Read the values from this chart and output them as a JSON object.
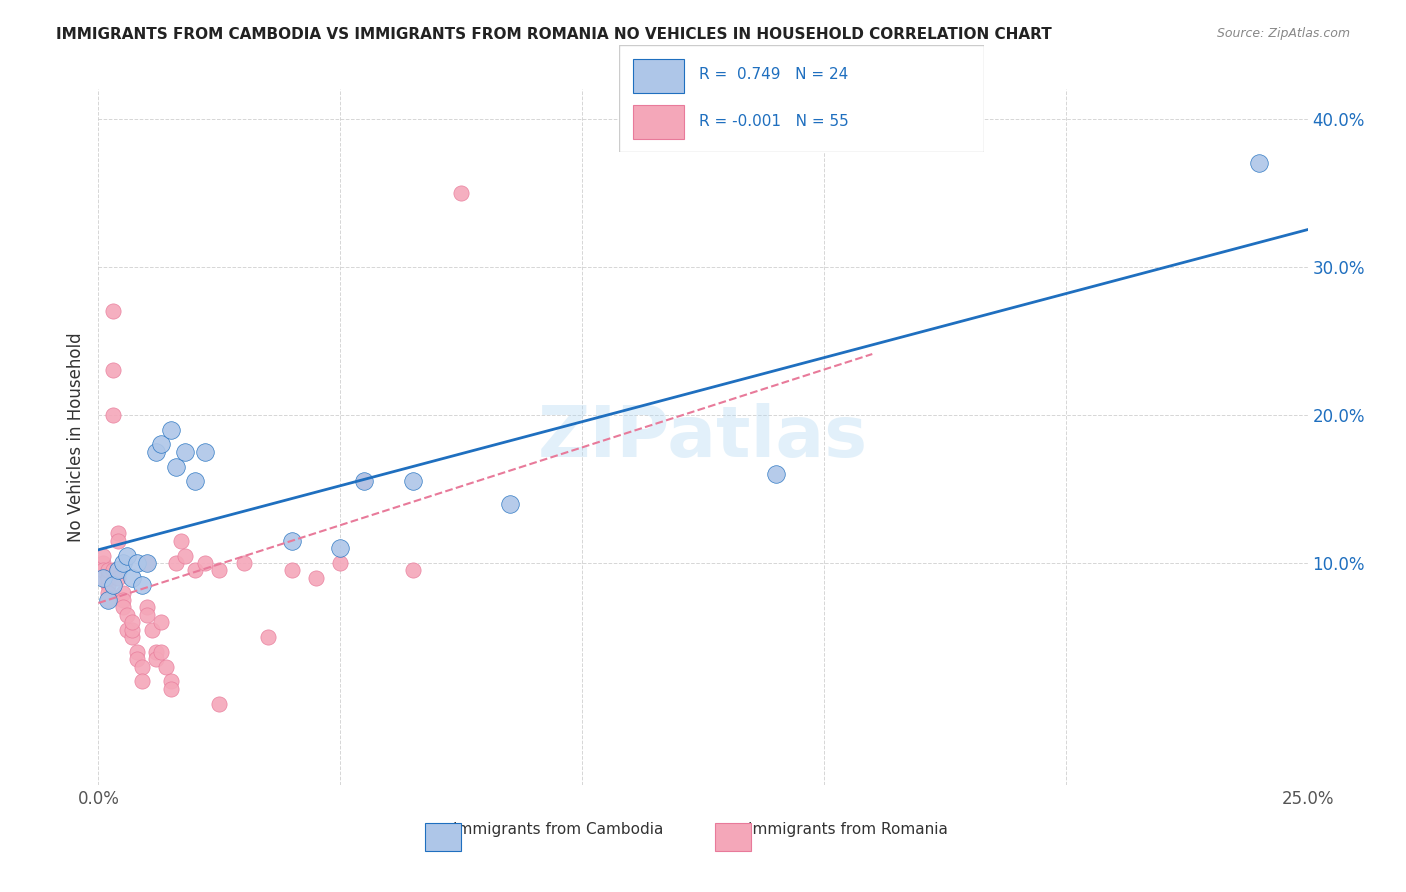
{
  "title": "IMMIGRANTS FROM CAMBODIA VS IMMIGRANTS FROM ROMANIA NO VEHICLES IN HOUSEHOLD CORRELATION CHART",
  "source": "Source: ZipAtlas.com",
  "xlabel_bottom": "",
  "ylabel": "No Vehicles in Household",
  "x_min": 0.0,
  "x_max": 0.25,
  "y_min": -0.05,
  "y_max": 0.42,
  "x_ticks": [
    0.0,
    0.05,
    0.1,
    0.15,
    0.2,
    0.25
  ],
  "x_tick_labels": [
    "0.0%",
    "",
    "",
    "",
    "",
    "25.0%"
  ],
  "y_ticks": [
    0.1,
    0.2,
    0.3,
    0.4
  ],
  "y_tick_labels": [
    "10.0%",
    "20.0%",
    "30.0%",
    "40.0%"
  ],
  "cambodia_color": "#aec6e8",
  "romania_color": "#f4a7b9",
  "cambodia_line_color": "#1f6fbf",
  "romania_line_color": "#e87a9a",
  "legend_cambodia_label": "Immigrants from Cambodia",
  "legend_romania_label": "Immigrants from Romania",
  "R_cambodia": 0.749,
  "N_cambodia": 24,
  "R_romania": -0.001,
  "N_romania": 55,
  "watermark": "ZIPatlas",
  "cambodia_x": [
    0.001,
    0.002,
    0.003,
    0.004,
    0.005,
    0.006,
    0.007,
    0.008,
    0.009,
    0.01,
    0.012,
    0.013,
    0.015,
    0.016,
    0.018,
    0.02,
    0.022,
    0.04,
    0.05,
    0.055,
    0.065,
    0.085,
    0.14,
    0.24
  ],
  "cambodia_y": [
    0.09,
    0.075,
    0.085,
    0.095,
    0.1,
    0.105,
    0.09,
    0.1,
    0.085,
    0.1,
    0.175,
    0.18,
    0.19,
    0.165,
    0.175,
    0.155,
    0.175,
    0.115,
    0.11,
    0.155,
    0.155,
    0.14,
    0.16,
    0.37
  ],
  "romania_x": [
    0.001,
    0.001,
    0.001,
    0.001,
    0.001,
    0.002,
    0.002,
    0.002,
    0.002,
    0.002,
    0.003,
    0.003,
    0.003,
    0.003,
    0.004,
    0.004,
    0.004,
    0.005,
    0.005,
    0.005,
    0.006,
    0.006,
    0.007,
    0.007,
    0.007,
    0.008,
    0.008,
    0.009,
    0.009,
    0.01,
    0.01,
    0.01,
    0.011,
    0.012,
    0.012,
    0.013,
    0.013,
    0.014,
    0.015,
    0.015,
    0.016,
    0.017,
    0.018,
    0.02,
    0.022,
    0.025,
    0.025,
    0.03,
    0.035,
    0.04,
    0.045,
    0.05,
    0.055,
    0.065,
    0.075
  ],
  "romania_y": [
    0.09,
    0.095,
    0.1,
    0.105,
    0.095,
    0.085,
    0.08,
    0.09,
    0.095,
    0.075,
    0.27,
    0.23,
    0.2,
    0.095,
    0.12,
    0.115,
    0.09,
    0.08,
    0.075,
    0.07,
    0.065,
    0.055,
    0.05,
    0.055,
    0.06,
    0.04,
    0.035,
    0.03,
    0.02,
    0.07,
    0.065,
    0.1,
    0.055,
    0.04,
    0.035,
    0.06,
    0.04,
    0.03,
    0.02,
    0.015,
    0.1,
    0.115,
    0.105,
    0.095,
    0.1,
    0.095,
    0.005,
    0.1,
    0.05,
    0.095,
    0.09,
    0.1,
    0.155,
    0.095,
    0.35
  ]
}
